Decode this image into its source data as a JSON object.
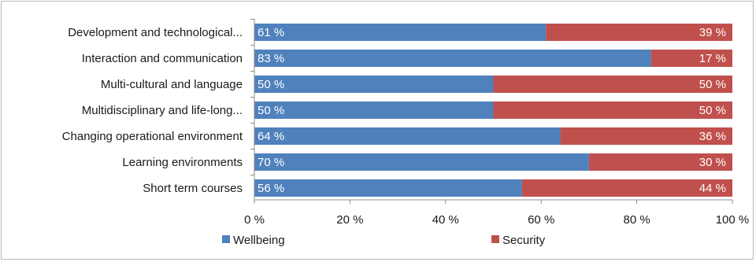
{
  "chart_data": {
    "type": "bar",
    "orientation": "horizontal",
    "stacked": "percent",
    "categories": [
      "Development and technological...",
      "Interaction and communication",
      "Multi-cultural and language",
      "Multidisciplinary and life-long...",
      "Changing operational environment",
      "Learning environments",
      "Short term courses"
    ],
    "series": [
      {
        "name": "Wellbeing",
        "color": "#4f81bd",
        "values": [
          61,
          83,
          50,
          50,
          64,
          70,
          56
        ],
        "labels": [
          "61 %",
          "83 %",
          "50 %",
          "50 %",
          "64 %",
          "70 %",
          "56 %"
        ]
      },
      {
        "name": "Security",
        "color": "#c0504d",
        "values": [
          39,
          17,
          50,
          50,
          36,
          30,
          44
        ],
        "labels": [
          "39 %",
          "17 %",
          "50 %",
          "50 %",
          "36 %",
          "30 %",
          "44 %"
        ]
      }
    ],
    "xlim": [
      0,
      100
    ],
    "x_ticks": [
      0,
      20,
      40,
      60,
      80,
      100
    ],
    "x_tick_labels": [
      "0 %",
      "20 %",
      "40 %",
      "60 %",
      "80 %",
      "100 %"
    ],
    "grid": false,
    "legend": "bottom"
  }
}
